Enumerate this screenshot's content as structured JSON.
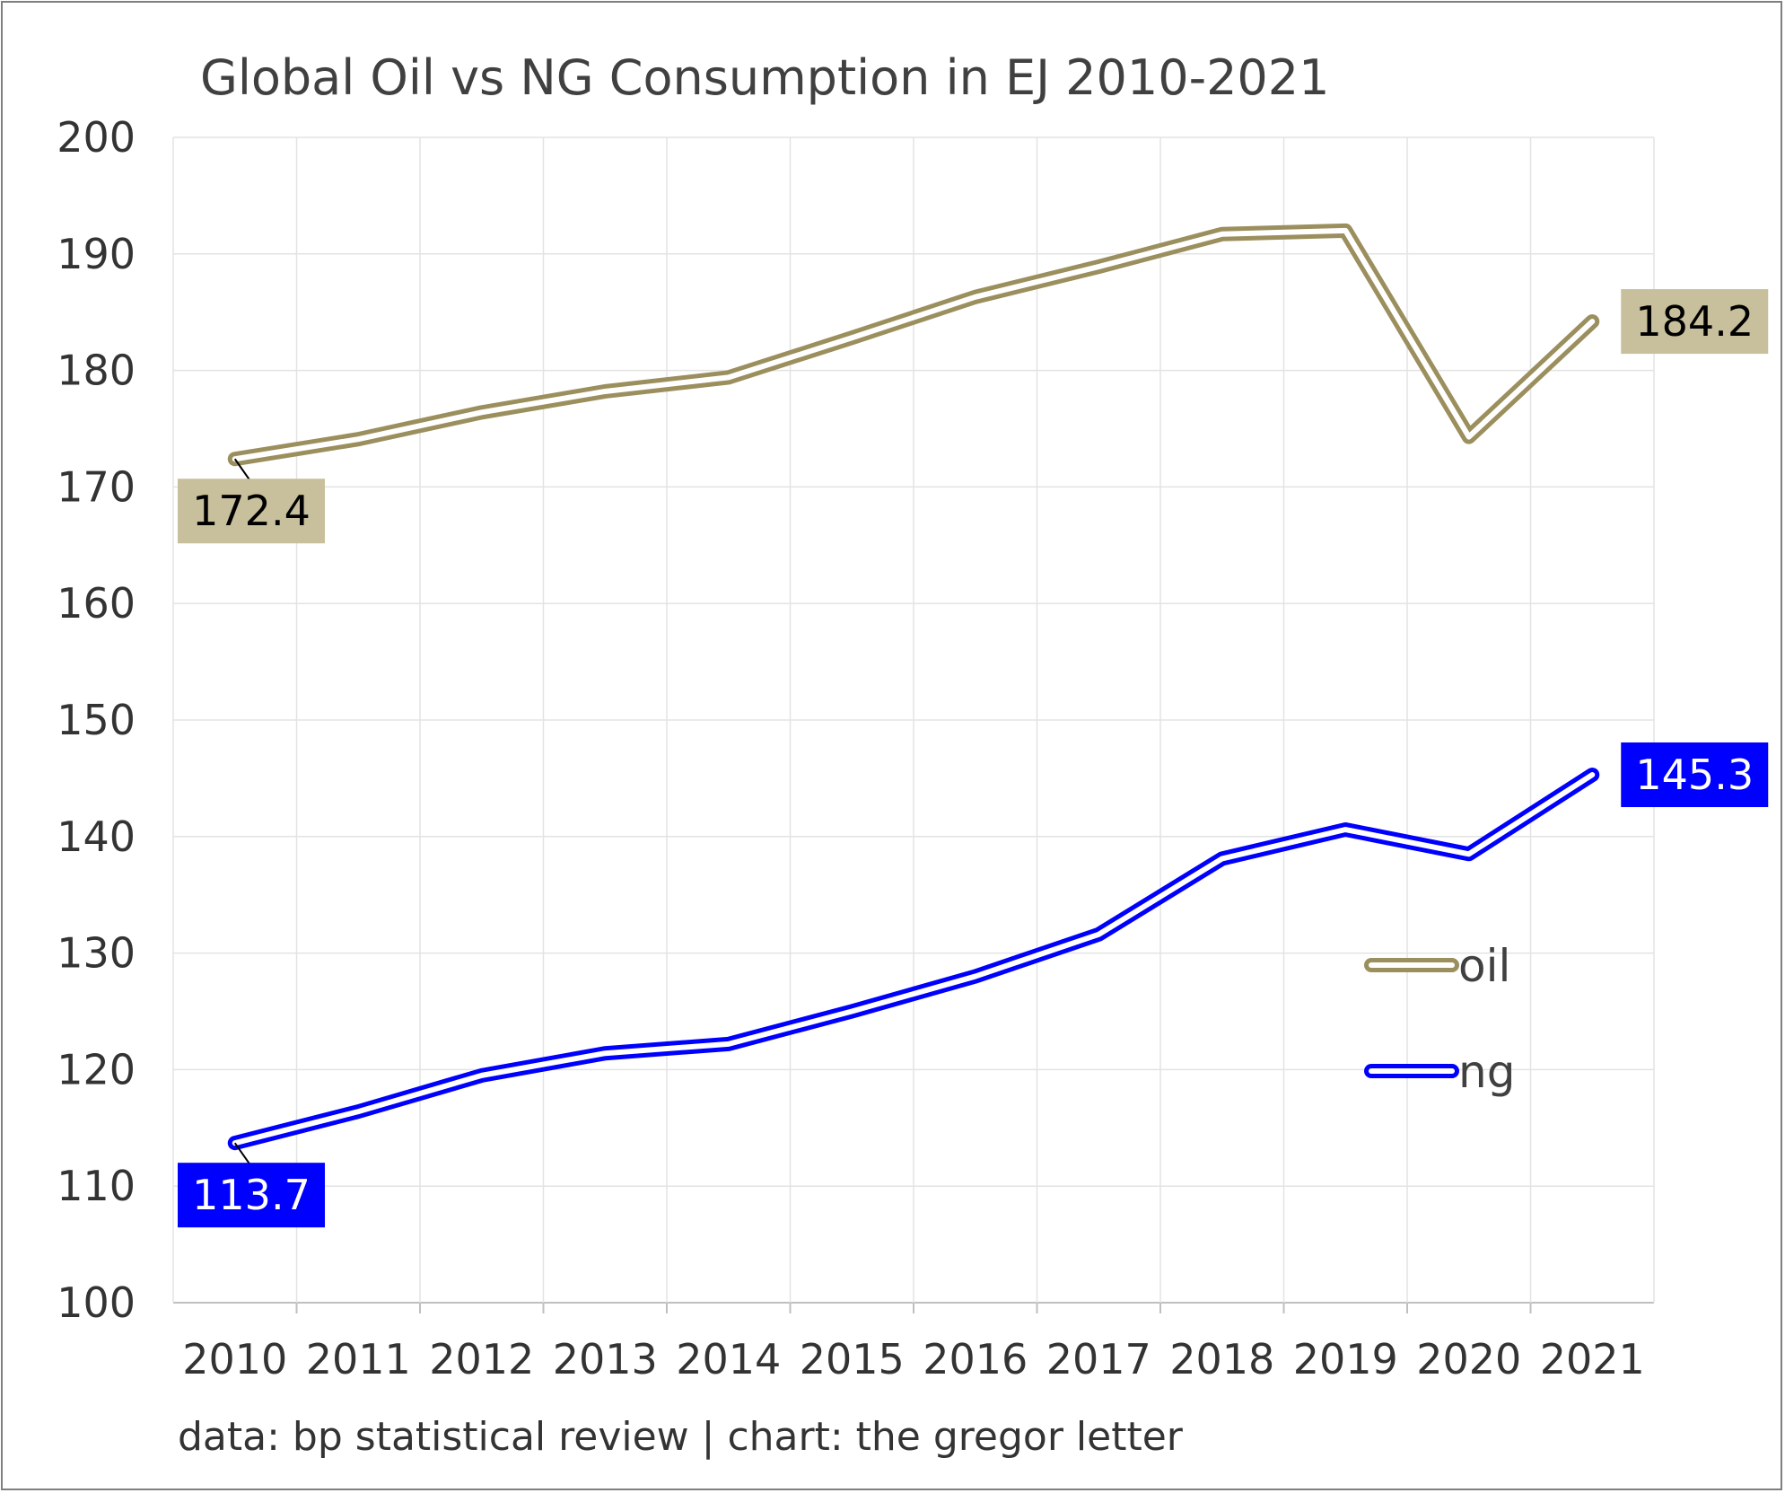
{
  "chart_data": {
    "type": "line",
    "title": "Global Oil vs NG Consumption in EJ 2010-2021",
    "xlabel": "",
    "ylabel": "",
    "categories": [
      "2010",
      "2011",
      "2012",
      "2013",
      "2014",
      "2015",
      "2016",
      "2017",
      "2018",
      "2019",
      "2020",
      "2021"
    ],
    "ylim": [
      100,
      200
    ],
    "yticks": [
      100,
      110,
      120,
      130,
      140,
      150,
      160,
      170,
      180,
      190,
      200
    ],
    "grid": true,
    "legend": "right-middle",
    "series": [
      {
        "name": "oil",
        "color": "#9b8f5e",
        "label_bg": "#c8bf9c",
        "label_fg": "#000000",
        "values": [
          172.4,
          174.1,
          176.4,
          178.2,
          179.4,
          182.8,
          186.3,
          188.9,
          191.7,
          192.0,
          174.3,
          184.2
        ]
      },
      {
        "name": "ng",
        "color": "#0000ff",
        "label_bg": "#0000ff",
        "label_fg": "#ffffff",
        "values": [
          113.7,
          116.4,
          119.5,
          121.4,
          122.2,
          125.0,
          128.0,
          131.6,
          138.1,
          140.6,
          138.5,
          145.3
        ]
      }
    ],
    "annotations": [
      {
        "series": "oil",
        "index": 0,
        "text": "172.4"
      },
      {
        "series": "oil",
        "index": 11,
        "text": "184.2"
      },
      {
        "series": "ng",
        "index": 0,
        "text": "113.7"
      },
      {
        "series": "ng",
        "index": 11,
        "text": "145.3"
      }
    ],
    "source": "data: bp statistical review | chart: the gregor letter"
  }
}
